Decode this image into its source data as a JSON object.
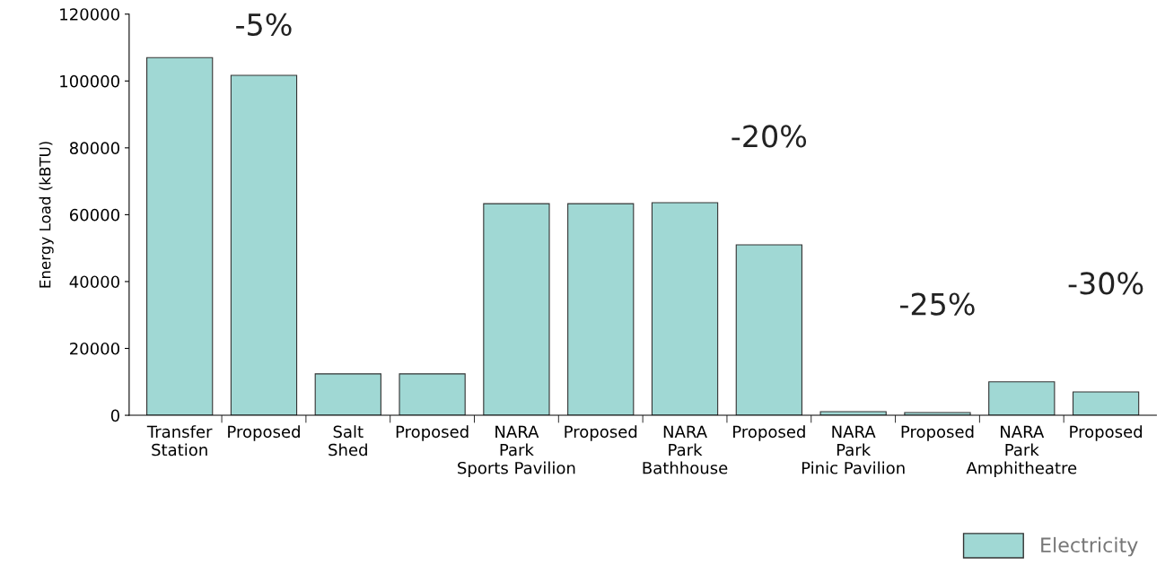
{
  "chart_data": {
    "type": "bar",
    "ylabel": "Energy Load (kBTU)",
    "categories": [
      "Transfer\nStation",
      "Proposed",
      "Salt\nShed",
      "Proposed",
      "NARA\nPark\nSports Pavilion",
      "Proposed",
      "NARA\nPark\nBathhouse",
      "Proposed",
      "NARA\nPark\nPinic Pavilion",
      "Proposed",
      "NARA\nPark\nAmphitheatre",
      "Proposed"
    ],
    "series": [
      {
        "name": "Electricity",
        "color": "#a0d8d4",
        "values": [
          107000,
          101700,
          12400,
          12400,
          63300,
          63300,
          63600,
          51000,
          1100,
          800,
          10000,
          7000
        ]
      }
    ],
    "annotations": [
      "-5%",
      "-20%",
      "-25%",
      "-30%"
    ],
    "ylim": [
      0,
      120000
    ],
    "yticks": [
      0,
      20000,
      40000,
      60000,
      80000,
      100000,
      120000
    ],
    "grid": false,
    "legend": "bottom right"
  }
}
